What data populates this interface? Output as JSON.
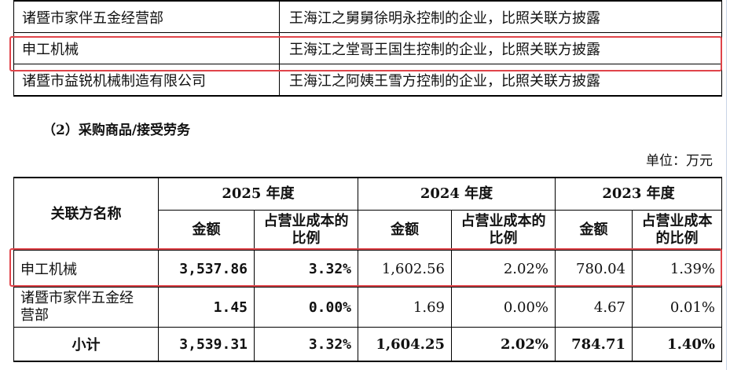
{
  "top_table": [
    {
      "name": "诸暨市家伴五金经营部",
      "desc": "王海江之舅舅徐明永控制的企业，比照关联方披露"
    },
    {
      "name": "申工机械",
      "desc": "王海江之堂哥王国生控制的企业，比照关联方披露"
    },
    {
      "name": "诸暨市益锐机械制造有限公司",
      "desc": "王海江之阿姨王雪方控制的企业，比照关联方披露"
    }
  ],
  "section_heading": "（2）采购商品/接受劳务",
  "unit": "单位：万元",
  "main_table": {
    "header": {
      "name_col": "关联方名称",
      "years": [
        "2025 年度",
        "2024 年度",
        "2023 年度"
      ],
      "amount": "金额",
      "ratio": "占营业成本的比例"
    },
    "rows": [
      {
        "name": "申工机械",
        "v2025": "3,537.86",
        "p2025": "3.32%",
        "v2024": "1,602.56",
        "p2024": "2.02%",
        "v2023": "780.04",
        "p2023": "1.39%"
      },
      {
        "name": "诸暨市家伴五金经营部",
        "v2025": "1.45",
        "p2025": "0.00%",
        "v2024": "1.69",
        "p2024": "0.00%",
        "v2023": "4.67",
        "p2023": "0.01%"
      }
    ],
    "total": {
      "name": "小计",
      "v2025": "3,539.31",
      "p2025": "3.32%",
      "v2024": "1,604.25",
      "p2024": "2.02%",
      "v2023": "784.71",
      "p2023": "1.40%"
    }
  },
  "colors": {
    "highlight": "#e0444a"
  }
}
